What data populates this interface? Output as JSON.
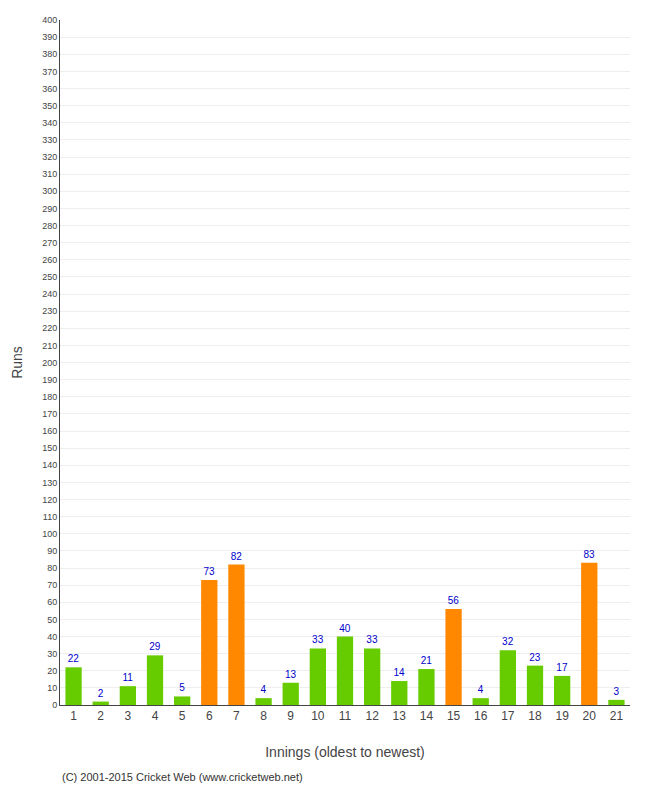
{
  "chart_data": {
    "type": "bar",
    "categories": [
      "1",
      "2",
      "3",
      "4",
      "5",
      "6",
      "7",
      "8",
      "9",
      "10",
      "11",
      "12",
      "13",
      "14",
      "15",
      "16",
      "17",
      "18",
      "19",
      "20",
      "21"
    ],
    "values": [
      22,
      2,
      11,
      29,
      5,
      73,
      82,
      4,
      13,
      33,
      40,
      33,
      14,
      21,
      56,
      4,
      32,
      23,
      17,
      83,
      3
    ],
    "colors": [
      "#66cc00",
      "#66cc00",
      "#66cc00",
      "#66cc00",
      "#66cc00",
      "#ff8800",
      "#ff8800",
      "#66cc00",
      "#66cc00",
      "#66cc00",
      "#66cc00",
      "#66cc00",
      "#66cc00",
      "#66cc00",
      "#ff8800",
      "#66cc00",
      "#66cc00",
      "#66cc00",
      "#66cc00",
      "#ff8800",
      "#66cc00"
    ],
    "xlabel": "Innings (oldest to newest)",
    "ylabel": "Runs",
    "ylim": [
      0,
      400
    ],
    "yticks": [
      0,
      10,
      20,
      30,
      40,
      50,
      60,
      70,
      80,
      90,
      100,
      110,
      120,
      130,
      140,
      150,
      160,
      170,
      180,
      190,
      200,
      210,
      220,
      230,
      240,
      250,
      260,
      270,
      280,
      290,
      300,
      310,
      320,
      330,
      340,
      350,
      360,
      370,
      380,
      390,
      400
    ],
    "grid": true,
    "data_labels": true,
    "label_color": "#0000cc",
    "annotations": [
      "(C) 2001-2015 Cricket Web (www.cricketweb.net)"
    ]
  }
}
